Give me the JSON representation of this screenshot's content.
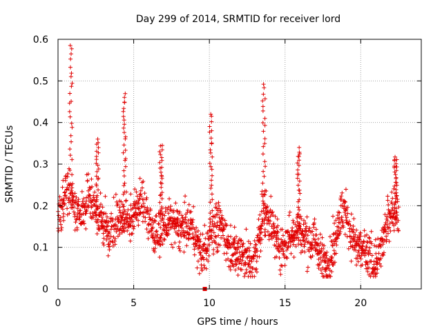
{
  "chart_data": {
    "type": "scatter",
    "title": "Day 299 of 2014, SRMTID for receiver lord",
    "xlabel": "GPS time / hours",
    "ylabel": "SRMTID / TECUs",
    "xlim": [
      0,
      24
    ],
    "ylim": [
      0,
      0.6
    ],
    "x_ticks": [
      0,
      5,
      10,
      15,
      20
    ],
    "x_tick_labels": [
      "0",
      "5",
      "10",
      "15",
      "20"
    ],
    "y_ticks": [
      0,
      0.1,
      0.2,
      0.3,
      0.4,
      0.5,
      0.6
    ],
    "y_tick_labels": [
      "0",
      "0.1",
      "0.2",
      "0.3",
      "0.4",
      "0.5",
      "0.6"
    ],
    "grid": true,
    "marker": "+",
    "color": "#e00000",
    "trend": [
      [
        0.0,
        0.17
      ],
      [
        0.5,
        0.2
      ],
      [
        1.0,
        0.2
      ],
      [
        1.5,
        0.22
      ],
      [
        2.0,
        0.24
      ],
      [
        2.5,
        0.15
      ],
      [
        3.0,
        0.16
      ],
      [
        3.5,
        0.14
      ],
      [
        4.0,
        0.17
      ],
      [
        4.5,
        0.2
      ],
      [
        5.0,
        0.19
      ],
      [
        5.5,
        0.16
      ],
      [
        6.0,
        0.15
      ],
      [
        6.5,
        0.17
      ],
      [
        7.0,
        0.16
      ],
      [
        7.5,
        0.15
      ],
      [
        8.0,
        0.15
      ],
      [
        8.5,
        0.13
      ],
      [
        9.0,
        0.12
      ],
      [
        9.5,
        0.12
      ],
      [
        10.0,
        0.15
      ],
      [
        10.5,
        0.11
      ],
      [
        11.0,
        0.12
      ],
      [
        11.5,
        0.11
      ],
      [
        12.0,
        0.09
      ],
      [
        12.5,
        0.08
      ],
      [
        13.0,
        0.09
      ],
      [
        13.5,
        0.14
      ],
      [
        14.0,
        0.14
      ],
      [
        14.5,
        0.15
      ],
      [
        15.0,
        0.13
      ],
      [
        15.5,
        0.11
      ],
      [
        16.0,
        0.14
      ],
      [
        16.5,
        0.11
      ],
      [
        17.0,
        0.1
      ],
      [
        17.5,
        0.09
      ],
      [
        18.0,
        0.1
      ],
      [
        18.5,
        0.13
      ],
      [
        19.0,
        0.15
      ],
      [
        19.5,
        0.14
      ],
      [
        20.0,
        0.11
      ],
      [
        20.5,
        0.07
      ],
      [
        21.0,
        0.07
      ],
      [
        21.5,
        0.1
      ],
      [
        22.0,
        0.16
      ],
      [
        22.5,
        0.2
      ]
    ],
    "spikes": [
      {
        "x": 0.85,
        "peak": 0.585
      },
      {
        "x": 2.6,
        "peak": 0.36
      },
      {
        "x": 4.4,
        "peak": 0.47
      },
      {
        "x": 6.8,
        "peak": 0.345
      },
      {
        "x": 10.1,
        "peak": 0.42
      },
      {
        "x": 13.6,
        "peak": 0.495
      },
      {
        "x": 15.9,
        "peak": 0.34
      },
      {
        "x": 22.3,
        "peak": 0.32
      }
    ],
    "outlier": {
      "x": 9.7,
      "y": 0.0
    }
  }
}
